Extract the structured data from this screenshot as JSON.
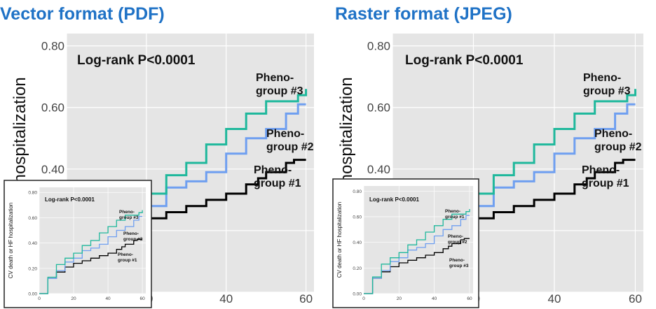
{
  "panels": [
    {
      "title": "Vector format (PDF)"
    },
    {
      "title": "Raster format (JPEG)"
    }
  ],
  "colors": {
    "title": "#1f72c6",
    "plot_bg": "#e5e5e5",
    "grid": "#ffffff",
    "series1": "#000000",
    "series2": "#6f9ff0",
    "series3": "#1fb89c"
  },
  "chart_data": [
    {
      "type": "line",
      "panel": "Vector format (PDF)",
      "ylabel": "CV death or HF hospitalization",
      "xlabel": "",
      "annotation": "Log-rank P<0.0001",
      "xlim": [
        0,
        62
      ],
      "ylim": [
        0,
        0.84
      ],
      "xticks": [
        "0",
        "20",
        "40",
        "60"
      ],
      "yticks": [
        "0.00",
        "0.20",
        "0.40",
        "0.60",
        "0.80"
      ],
      "series": [
        {
          "name": "Pheno-group #1",
          "label_lines": [
            "Pheno-",
            "group #1"
          ],
          "x": [
            0,
            5,
            10,
            15,
            20,
            25,
            30,
            35,
            40,
            45,
            48,
            50,
            55,
            57,
            60
          ],
          "y": [
            0,
            0.12,
            0.17,
            0.21,
            0.24,
            0.26,
            0.28,
            0.3,
            0.32,
            0.35,
            0.37,
            0.39,
            0.42,
            0.43,
            0.43
          ]
        },
        {
          "name": "Pheno-group #2",
          "label_lines": [
            "Pheno-",
            "group #2"
          ],
          "x": [
            0,
            5,
            10,
            15,
            20,
            25,
            30,
            35,
            40,
            45,
            50,
            55,
            58,
            60
          ],
          "y": [
            0,
            0.12,
            0.18,
            0.25,
            0.28,
            0.34,
            0.36,
            0.39,
            0.45,
            0.5,
            0.53,
            0.58,
            0.61,
            0.61
          ]
        },
        {
          "name": "Pheno-group #3",
          "label_lines": [
            "Pheno-",
            "group #3"
          ],
          "x": [
            0,
            5,
            10,
            15,
            20,
            25,
            30,
            35,
            40,
            45,
            50,
            55,
            58,
            60
          ],
          "y": [
            0,
            0.13,
            0.23,
            0.28,
            0.32,
            0.38,
            0.42,
            0.48,
            0.53,
            0.58,
            0.62,
            0.62,
            0.64,
            0.66
          ]
        }
      ]
    },
    {
      "type": "line",
      "panel": "Raster format (JPEG)",
      "ylabel": "CV death or HF hospitalization",
      "xlabel": "",
      "annotation": "Log-rank P<0.0001",
      "xlim": [
        0,
        62
      ],
      "ylim": [
        0,
        0.84
      ],
      "xticks": [
        "0",
        "20",
        "40",
        "60"
      ],
      "yticks": [
        "0.00",
        "0.20",
        "0.40",
        "0.60",
        "0.80"
      ],
      "series": [
        {
          "name": "Pheno-group #1",
          "label_lines": [
            "Pheno-",
            "group #1"
          ],
          "x": [
            0,
            5,
            10,
            15,
            20,
            25,
            30,
            35,
            40,
            45,
            48,
            50,
            55,
            57,
            60
          ],
          "y": [
            0,
            0.12,
            0.17,
            0.21,
            0.24,
            0.26,
            0.28,
            0.3,
            0.32,
            0.35,
            0.37,
            0.39,
            0.42,
            0.43,
            0.43
          ]
        },
        {
          "name": "Pheno-group #2",
          "label_lines": [
            "Pheno-",
            "group #2"
          ],
          "x": [
            0,
            5,
            10,
            15,
            20,
            25,
            30,
            35,
            40,
            45,
            50,
            55,
            58,
            60
          ],
          "y": [
            0,
            0.12,
            0.18,
            0.25,
            0.28,
            0.34,
            0.36,
            0.39,
            0.45,
            0.5,
            0.53,
            0.58,
            0.61,
            0.61
          ]
        },
        {
          "name": "Pheno-group #3",
          "label_lines": [
            "Pheno-",
            "group #3"
          ],
          "x": [
            0,
            5,
            10,
            15,
            20,
            25,
            30,
            35,
            40,
            45,
            50,
            55,
            58,
            60
          ],
          "y": [
            0,
            0.13,
            0.23,
            0.28,
            0.32,
            0.38,
            0.42,
            0.48,
            0.53,
            0.58,
            0.62,
            0.62,
            0.64,
            0.66
          ]
        }
      ]
    }
  ]
}
